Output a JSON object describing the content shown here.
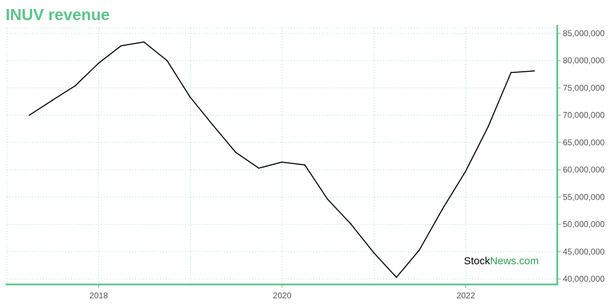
{
  "title": "INUV revenue",
  "watermark": {
    "part1": "Stock",
    "part2": "News.com"
  },
  "colors": {
    "accent": "#5cc48a",
    "line": "#000000",
    "grid": "#a9dcc0"
  },
  "chart_data": {
    "type": "line",
    "title": "INUV revenue",
    "xlabel": "",
    "ylabel": "",
    "x": [
      "2017-03-31",
      "2017-06-30",
      "2017-09-30",
      "2017-12-31",
      "2018-03-31",
      "2018-06-30",
      "2018-09-30",
      "2018-12-31",
      "2019-03-31",
      "2019-06-30",
      "2019-09-30",
      "2019-12-31",
      "2020-03-31",
      "2020-06-30",
      "2020-09-30",
      "2020-12-31",
      "2021-03-31",
      "2021-06-30",
      "2021-09-30",
      "2021-12-31",
      "2022-03-31",
      "2022-06-30",
      "2022-09-30"
    ],
    "series": [
      {
        "values": [
          70000000,
          72700000,
          75400000,
          79500000,
          82700000,
          83400000,
          80000000,
          73300000,
          68200000,
          63200000,
          60300000,
          61400000,
          60900000,
          54600000,
          50100000,
          44800000,
          40300000,
          45300000,
          52800000,
          59700000,
          67900000,
          77800000,
          78100000
        ]
      }
    ],
    "ylim": [
      39000000,
      86000000
    ],
    "yticks": [
      40000000,
      45000000,
      50000000,
      55000000,
      60000000,
      65000000,
      70000000,
      75000000,
      80000000,
      85000000
    ],
    "ytick_labels": [
      "40,000,000",
      "45,000,000",
      "50,000,000",
      "55,000,000",
      "60,000,000",
      "65,000,000",
      "70,000,000",
      "75,000,000",
      "80,000,000",
      "85,000,000"
    ],
    "xticks": [
      "2018",
      "2020",
      "2022"
    ],
    "xlim": [
      "2017-01-01",
      "2022-12-31"
    ],
    "grid": true,
    "legend": "none"
  }
}
